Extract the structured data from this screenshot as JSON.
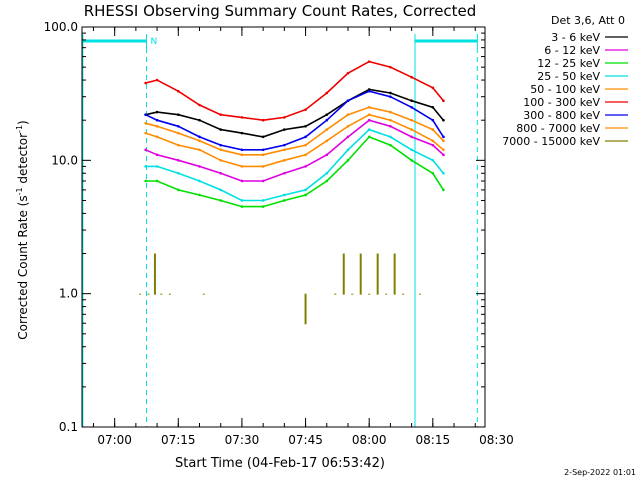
{
  "chart_data": {
    "type": "line",
    "title": "RHESSI Observing Summary Count Rates, Corrected",
    "xlabel": "Start Time (04-Feb-17 06:53:42)",
    "ylabel_main": "Corrected Count Rate (s",
    "ylabel_sup1": "-1",
    "ylabel_mid": " detector",
    "ylabel_sup2": "-1",
    "ylabel_end": ")",
    "yscale": "log",
    "ylim": [
      0.1,
      100.0
    ],
    "xlim_minutes": [
      -7.7,
      87.3
    ],
    "x_ticks": [
      {
        "label": "07:00",
        "minutes": 0
      },
      {
        "label": "07:15",
        "minutes": 15
      },
      {
        "label": "07:30",
        "minutes": 30
      },
      {
        "label": "07:45",
        "minutes": 45
      },
      {
        "label": "08:00",
        "minutes": 60
      },
      {
        "label": "08:15",
        "minutes": 75
      },
      {
        "label": "08:30",
        "minutes": 90
      }
    ],
    "y_ticks": [
      {
        "label": "0.1",
        "value": 0.1
      },
      {
        "label": "1.0",
        "value": 1.0
      },
      {
        "label": "10.0",
        "value": 10.0
      },
      {
        "label": "100.0",
        "value": 100.0
      }
    ],
    "legend_header": "Det 3,6, Att 0",
    "legend_position": "outside-right",
    "annotation_night": "N",
    "footer_date": "2-Sep-2022 01:01",
    "night_intervals_minutes": [
      [
        -7.5,
        7.5
      ],
      [
        70.8,
        85.5
      ]
    ],
    "series": [
      {
        "name": "3 - 6 keV",
        "color": "#000000",
        "x": [
          7.3,
          10,
          15,
          20,
          25,
          30,
          35,
          40,
          45,
          50,
          55,
          60,
          65,
          70,
          75,
          77.5
        ],
        "y": [
          22,
          23,
          22,
          20,
          17,
          16,
          15,
          17,
          18,
          22,
          28,
          34,
          32,
          28,
          25,
          20
        ]
      },
      {
        "name": "6 - 12 keV",
        "color": "#e000e0",
        "x": [
          7.3,
          10,
          15,
          20,
          25,
          30,
          35,
          40,
          45,
          50,
          55,
          60,
          65,
          70,
          75,
          77.5
        ],
        "y": [
          12,
          11,
          10,
          9,
          8,
          7,
          7,
          8,
          9,
          11,
          15,
          20,
          18,
          15,
          13,
          11
        ]
      },
      {
        "name": "12 - 25 keV",
        "color": "#00e000",
        "x": [
          7.3,
          10,
          15,
          20,
          25,
          30,
          35,
          40,
          45,
          50,
          55,
          60,
          65,
          70,
          75,
          77.5
        ],
        "y": [
          7,
          7,
          6,
          5.5,
          5,
          4.5,
          4.5,
          5,
          5.5,
          7,
          10,
          15,
          13,
          10,
          8,
          6
        ]
      },
      {
        "name": "25 - 50 keV",
        "color": "#00e0e0",
        "x": [
          7.3,
          10,
          15,
          20,
          25,
          30,
          35,
          40,
          45,
          50,
          55,
          60,
          65,
          70,
          75,
          77.5
        ],
        "y": [
          9,
          9,
          8,
          7,
          6,
          5,
          5,
          5.5,
          6,
          8,
          12,
          17,
          15,
          12,
          10,
          8
        ]
      },
      {
        "name": "50 - 100 keV",
        "color": "#ff8c00",
        "x": [
          7.3,
          10,
          15,
          20,
          25,
          30,
          35,
          40,
          45,
          50,
          55,
          60,
          65,
          70,
          75,
          77.5
        ],
        "y": [
          16,
          15,
          13,
          12,
          10,
          9,
          9,
          10,
          11,
          14,
          18,
          22,
          20,
          17,
          14,
          12
        ]
      },
      {
        "name": "100 - 300 keV",
        "color": "#ee0000",
        "x": [
          7.3,
          10,
          15,
          20,
          25,
          30,
          35,
          40,
          45,
          50,
          55,
          60,
          65,
          70,
          75,
          77.5
        ],
        "y": [
          38,
          40,
          33,
          26,
          22,
          21,
          20,
          21,
          24,
          32,
          45,
          55,
          50,
          42,
          35,
          28
        ]
      },
      {
        "name": "300 - 800 keV",
        "color": "#0000ee",
        "x": [
          7.3,
          10,
          15,
          20,
          25,
          30,
          35,
          40,
          45,
          50,
          55,
          60,
          65,
          70,
          75,
          77.5
        ],
        "y": [
          22,
          20,
          18,
          15,
          13,
          12,
          12,
          13,
          15,
          20,
          28,
          33,
          30,
          25,
          20,
          15
        ]
      },
      {
        "name": "800 - 7000 keV",
        "color": "#ff8c00",
        "x": [
          7.3,
          10,
          15,
          20,
          25,
          30,
          35,
          40,
          45,
          50,
          55,
          60,
          65,
          70,
          75,
          77.5
        ],
        "y": [
          19,
          18,
          16,
          14,
          12,
          11,
          11,
          12,
          13,
          17,
          22,
          25,
          23,
          20,
          17,
          14
        ]
      },
      {
        "name": "7000 - 15000 keV",
        "color": "#808000",
        "x": [
          6,
          8,
          9.5,
          11,
          13,
          21,
          45,
          52,
          54,
          56,
          58,
          60,
          62,
          64,
          66,
          68,
          72
        ],
        "y": [
          1.0,
          1.0,
          2.0,
          1.0,
          1.0,
          1.0,
          0.6,
          1.0,
          2.0,
          1.0,
          2.0,
          1.0,
          2.0,
          1.0,
          2.0,
          1.0,
          1.0
        ]
      }
    ]
  }
}
